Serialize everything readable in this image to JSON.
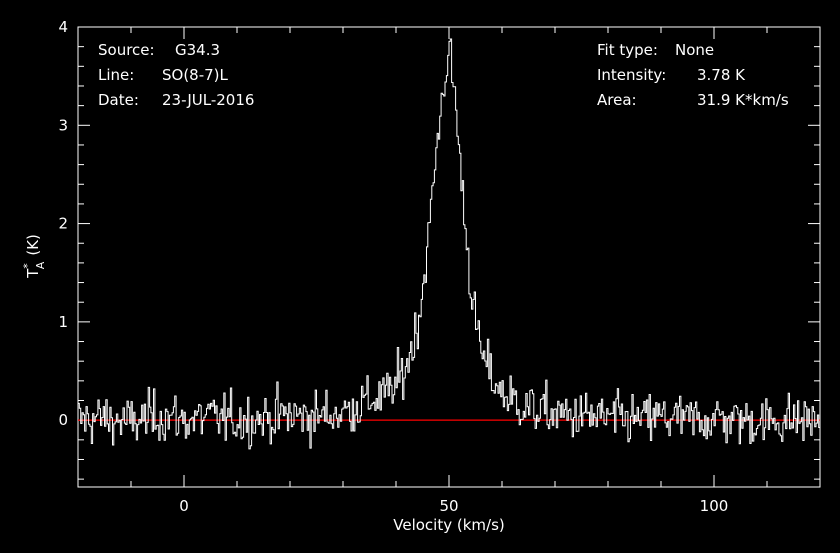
{
  "info": {
    "source_label": "Source:",
    "source_value": "G34.3",
    "line_label": "Line:",
    "line_value": "SO(8-7)L",
    "date_label": "Date:",
    "date_value": "23-JUL-2016",
    "fit_label": "Fit type:",
    "fit_value": "None",
    "intensity_label": "Intensity:",
    "intensity_value": "3.78 K",
    "area_label": "Area:",
    "area_value": "31.9 K*km/s"
  },
  "chart_data": {
    "type": "line",
    "xlabel": "Velocity (km/s)",
    "ylabel_main": "T",
    "ylabel_sup": "*",
    "ylabel_sub": "A",
    "ylabel_unit": "(K)",
    "xlim": [
      -20,
      120
    ],
    "ylim": [
      -0.68,
      4.0
    ],
    "xticks": [
      0,
      50,
      100
    ],
    "yticks": [
      0,
      1,
      2,
      3,
      4
    ],
    "baseline": 0,
    "colors": {
      "background": "#000000",
      "axes": "#ffffff",
      "spectrum": "#ffffff",
      "baseline": "#ff0000"
    },
    "series": [
      {
        "x": [
          -20,
          -15,
          -10,
          -5,
          0,
          5,
          10,
          15,
          20,
          25,
          30,
          34,
          38,
          40,
          42,
          44,
          45,
          46,
          47,
          48,
          49,
          49.5,
          50,
          50.5,
          51,
          52,
          53,
          54,
          55,
          56,
          58,
          60,
          62,
          65,
          70,
          75,
          80,
          85,
          90,
          95,
          100,
          105,
          110,
          115,
          120
        ],
        "values": [
          0.0,
          0.02,
          -0.03,
          0.05,
          0.0,
          0.03,
          0.0,
          0.02,
          0.05,
          0.04,
          0.08,
          0.18,
          0.25,
          0.35,
          0.55,
          0.95,
          1.3,
          1.8,
          2.35,
          2.95,
          3.4,
          3.6,
          3.78,
          3.55,
          3.4,
          2.7,
          2.05,
          1.45,
          1.0,
          0.7,
          0.45,
          0.28,
          0.2,
          0.12,
          0.06,
          0.04,
          0.02,
          0.0,
          0.03,
          0.0,
          0.02,
          0.0,
          -0.01,
          0.01,
          0.0
        ]
      }
    ],
    "noise_rms": 0.15,
    "channel_width": 0.25
  }
}
